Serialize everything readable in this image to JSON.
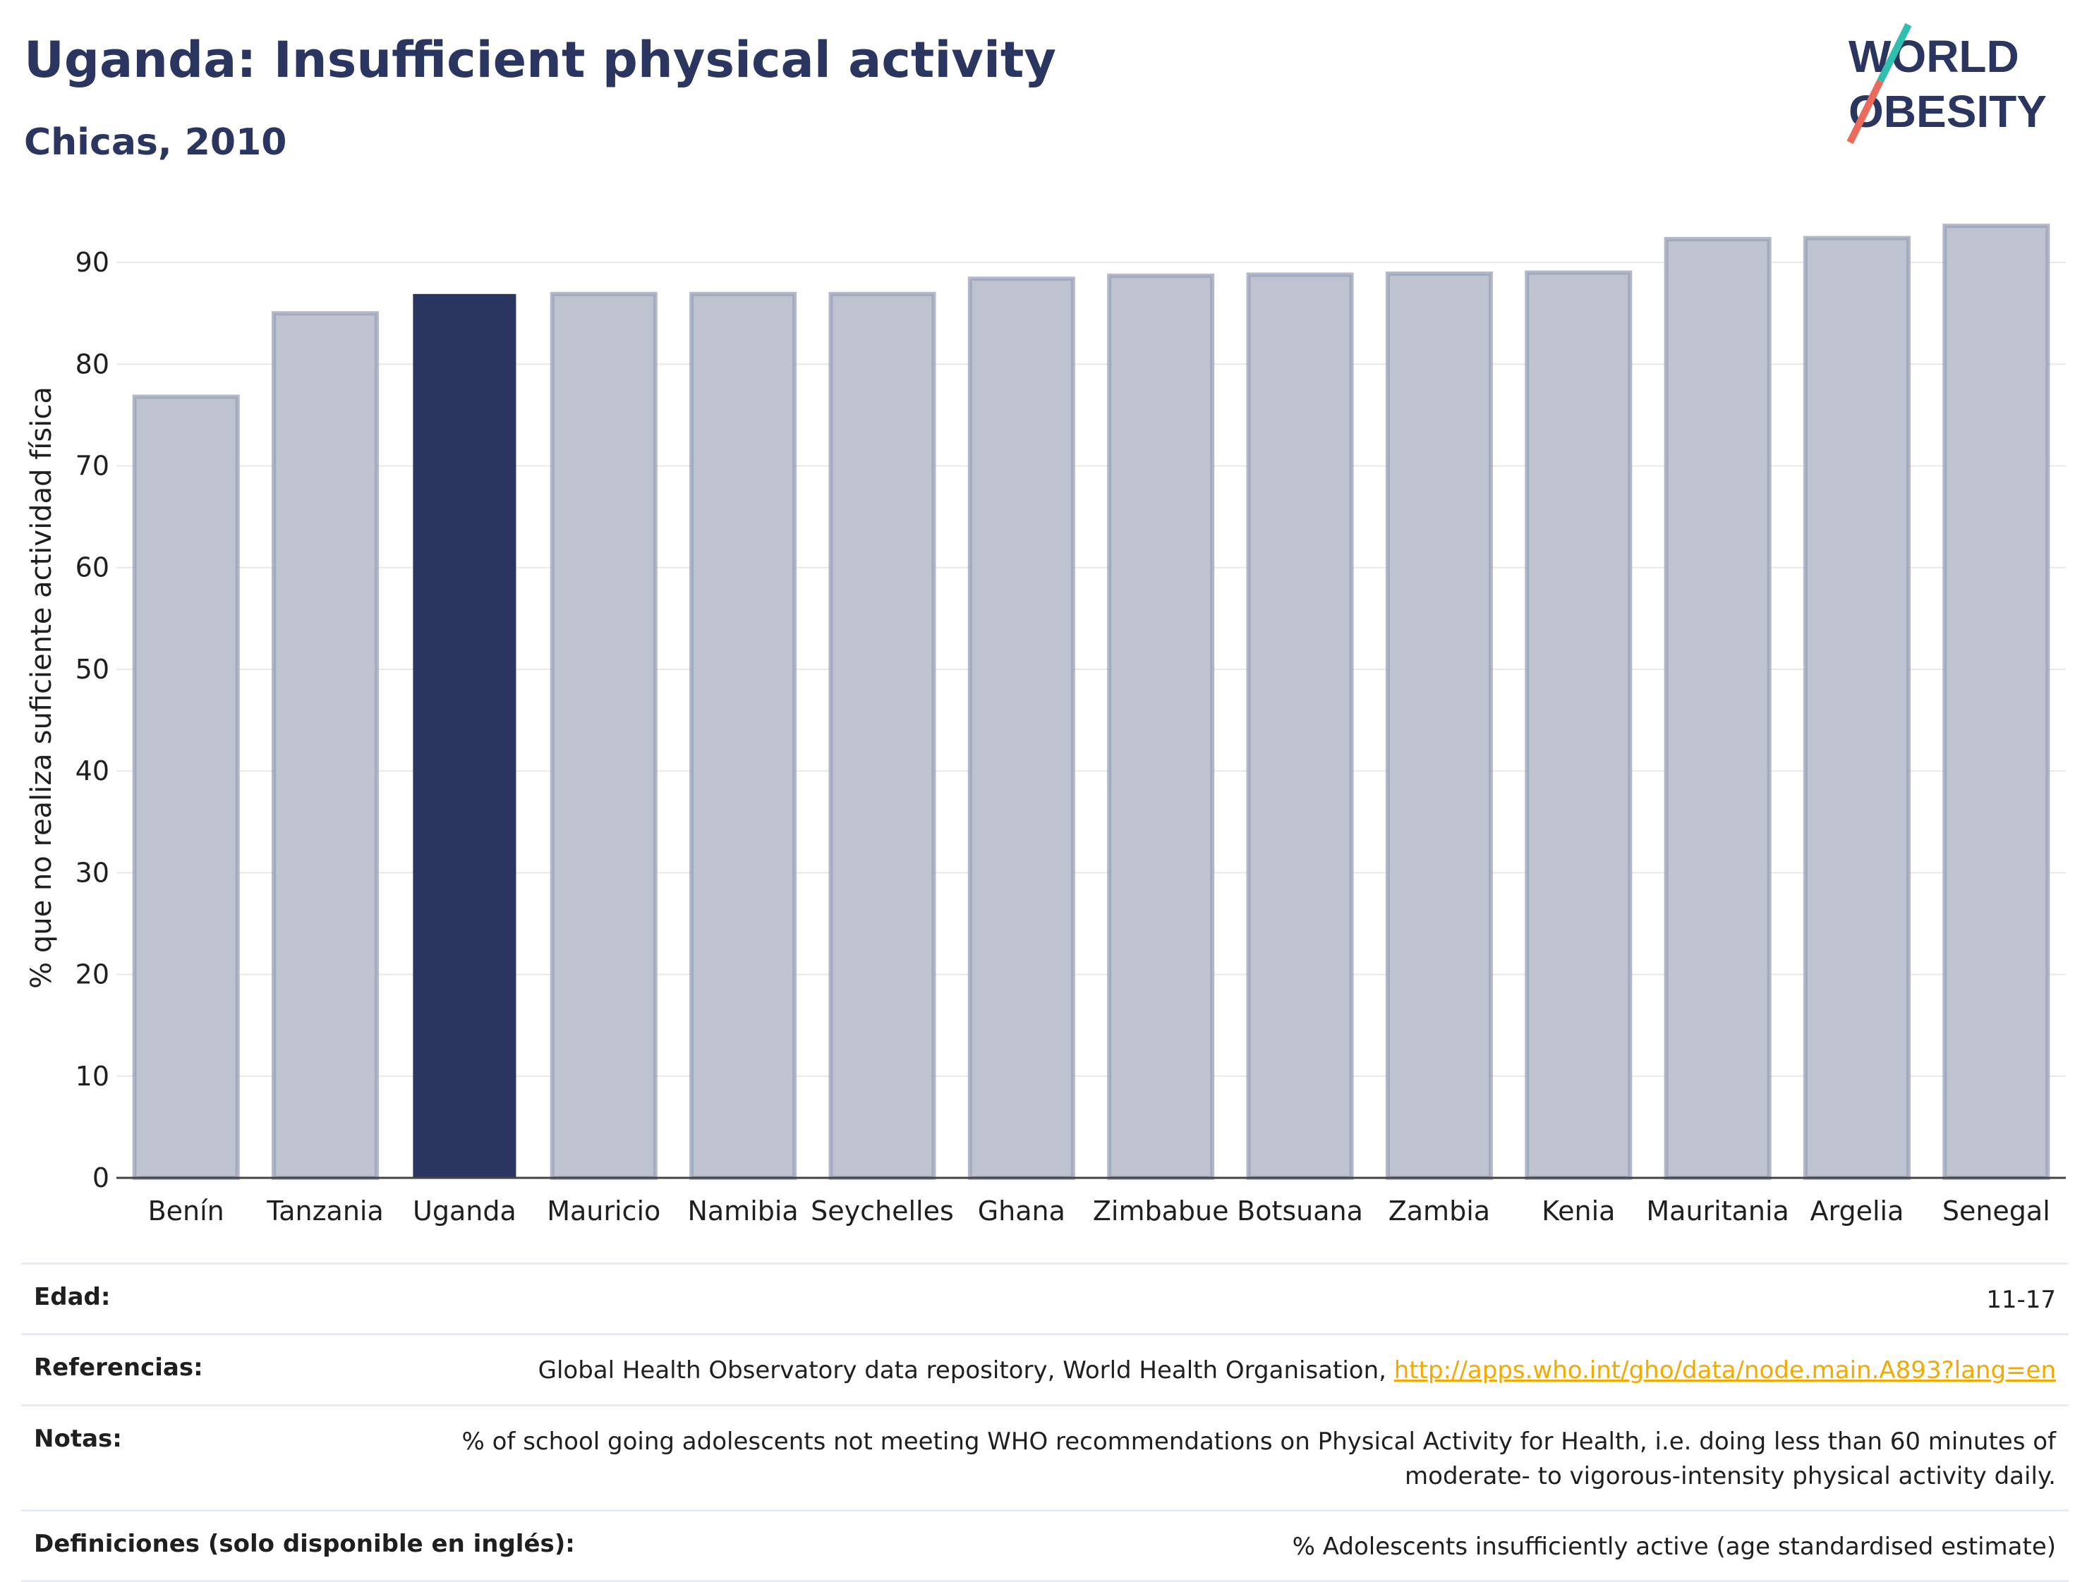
{
  "header": {
    "title": "Uganda: Insufficient physical activity",
    "subtitle": "Chicas, 2010"
  },
  "logo": {
    "line1": "WORLD",
    "line2": "OBESITY",
    "accent_colors": [
      "#2fbfae",
      "#ec6a5c"
    ]
  },
  "colors": {
    "highlight": "#2a3560",
    "bar": "#bfc2cf",
    "bar_stroke": "#9aa0b8",
    "axis": "#444444",
    "grid": "#e8e8ee"
  },
  "chart_data": {
    "type": "bar",
    "ylabel": "% que no realiza suficiente actividad física",
    "ylim": [
      0,
      95
    ],
    "yticks": [
      0,
      10,
      20,
      30,
      40,
      50,
      60,
      70,
      80,
      90
    ],
    "grid": true,
    "categories": [
      "Benín",
      "Tanzania",
      "Uganda",
      "Mauricio",
      "Namibia",
      "Seychelles",
      "Ghana",
      "Zimbabue",
      "Botsuana",
      "Zambia",
      "Kenia",
      "Mauritania",
      "Argelia",
      "Senegal"
    ],
    "values": [
      76.8,
      85.0,
      86.9,
      86.9,
      86.9,
      86.9,
      88.4,
      88.7,
      88.8,
      88.9,
      89.0,
      92.3,
      92.4,
      93.6
    ],
    "highlight": "Uganda"
  },
  "meta": {
    "age_label": "Edad:",
    "age_value": "11-17",
    "refs_label": "Referencias:",
    "refs_text": "Global Health Observatory data repository, World Health Organisation,",
    "refs_link": "http://apps.who.int/gho/data/node.main.A893?lang=en",
    "notes_label": "Notas:",
    "notes_line1": "% of school going adolescents not meeting WHO recommendations on Physical Activity for Health, i.e. doing less than 60 minutes of",
    "notes_line2": "moderate- to vigorous-intensity physical activity daily.",
    "defs_label": "Definiciones (solo disponible en inglés):",
    "defs_value": "% Adolescents insufficiently active (age standardised estimate)"
  }
}
